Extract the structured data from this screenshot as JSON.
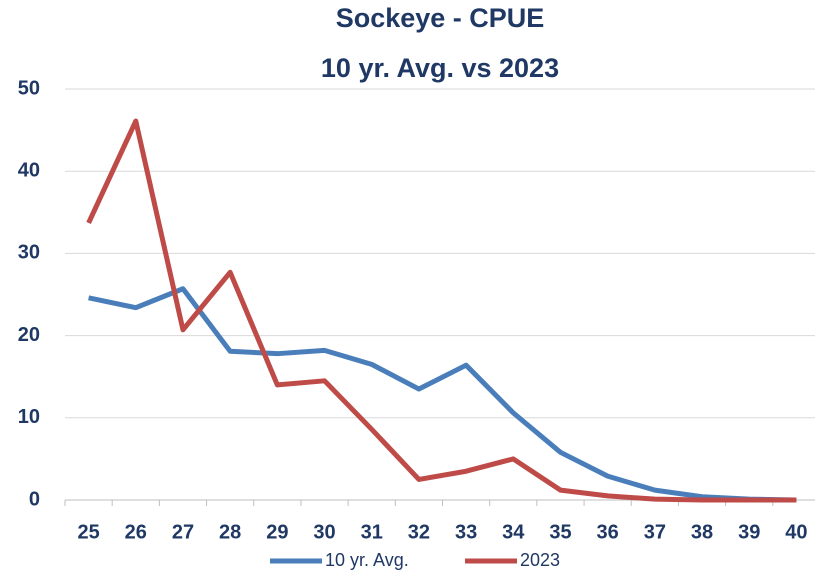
{
  "chart_data": {
    "type": "line",
    "title": "Sockeye - CPUE",
    "subtitle": "10 yr. Avg. vs 2023",
    "categories": [
      "25",
      "26",
      "27",
      "28",
      "29",
      "30",
      "31",
      "32",
      "33",
      "34",
      "35",
      "36",
      "37",
      "38",
      "39",
      "40"
    ],
    "series": [
      {
        "name": "10 yr. Avg.",
        "color": "#4a7ebb",
        "values": [
          24.6,
          23.4,
          25.7,
          18.1,
          17.8,
          18.2,
          16.5,
          13.5,
          16.4,
          10.6,
          5.8,
          2.9,
          1.2,
          0.4,
          0.1,
          0
        ]
      },
      {
        "name": "2023",
        "color": "#be4b48",
        "values": [
          33.7,
          46.1,
          20.7,
          27.7,
          14.0,
          14.5,
          8.6,
          2.5,
          3.5,
          5.0,
          1.2,
          0.5,
          0.1,
          0,
          0,
          0
        ]
      }
    ],
    "ylim": [
      0,
      50
    ],
    "yticks": [
      0,
      10,
      20,
      30,
      40,
      50
    ],
    "grid": true,
    "legend": "bottom"
  }
}
